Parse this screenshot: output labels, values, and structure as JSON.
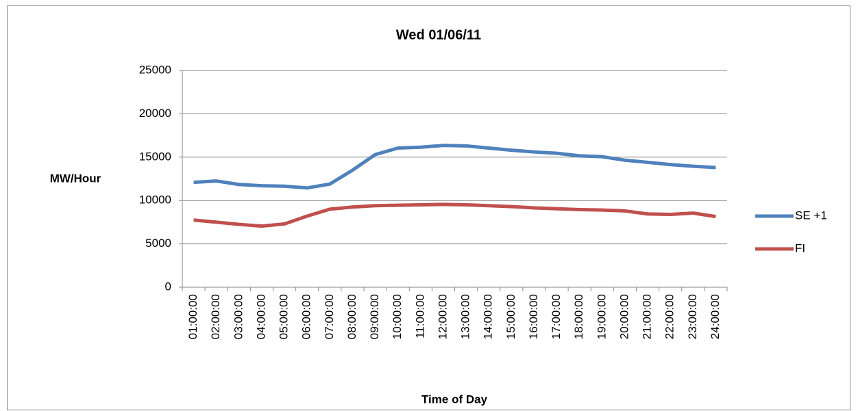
{
  "chart_data": {
    "type": "line",
    "title": "Wed 01/06/11",
    "x_label": "Time of Day",
    "y_label": "MW/Hour",
    "categories": [
      "01:00:00",
      "02:00:00",
      "03:00:00",
      "04:00:00",
      "05:00:00",
      "06:00:00",
      "07:00:00",
      "08:00:00",
      "09:00:00",
      "10:00:00",
      "11:00:00",
      "12:00:00",
      "13:00:00",
      "14:00:00",
      "15:00:00",
      "16:00:00",
      "17:00:00",
      "18:00:00",
      "19:00:00",
      "20:00:00",
      "21:00:00",
      "22:00:00",
      "23:00:00",
      "24:00:00"
    ],
    "series": [
      {
        "name": "SE +1",
        "color": "#4f81bd",
        "values": [
          12100,
          12250,
          11850,
          11700,
          11650,
          11450,
          11900,
          13500,
          15300,
          16050,
          16150,
          16350,
          16300,
          16050,
          15800,
          15600,
          15450,
          15150,
          15050,
          14650,
          14400,
          14150,
          13950,
          13800
        ]
      },
      {
        "name": "FI",
        "color": "#c0504d",
        "values": [
          7750,
          7500,
          7250,
          7050,
          7300,
          8200,
          9000,
          9250,
          9400,
          9450,
          9500,
          9550,
          9500,
          9400,
          9300,
          9150,
          9050,
          8950,
          8900,
          8800,
          8450,
          8400,
          8550,
          8150
        ]
      }
    ],
    "ylim": [
      0,
      25000
    ],
    "yticks": [
      0,
      5000,
      10000,
      15000,
      20000,
      25000
    ],
    "grid": true,
    "legend": "right"
  }
}
